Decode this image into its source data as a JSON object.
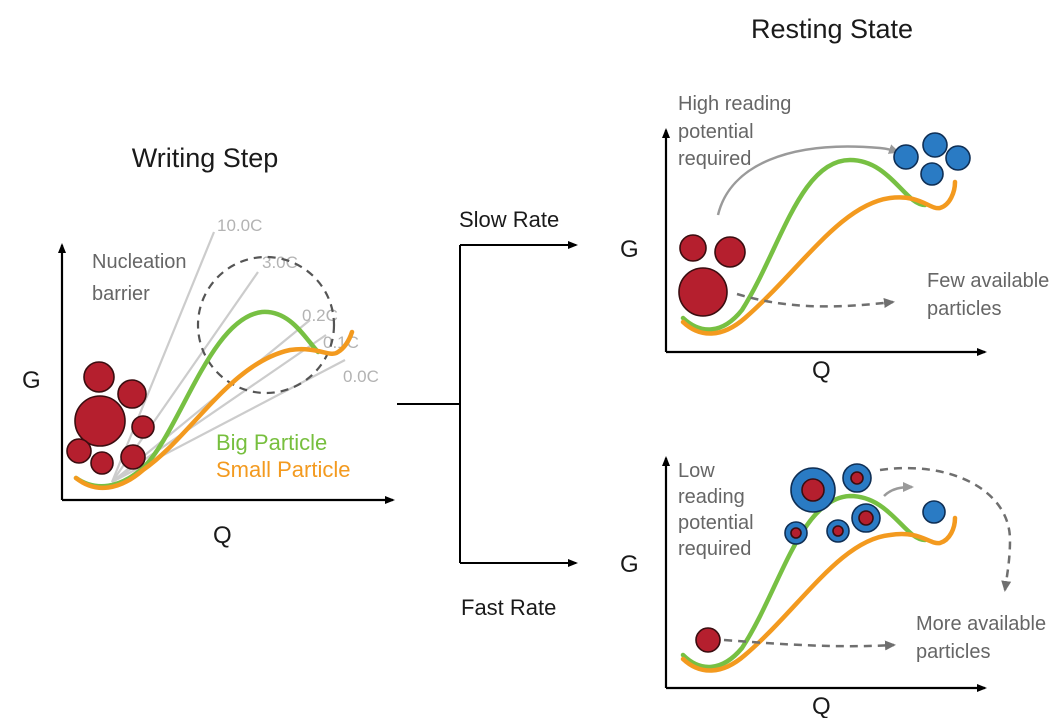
{
  "writing_step": {
    "title": "Writing Step",
    "y_axis_label": "G",
    "x_axis_label": "Q",
    "annotation": "Nucleation barrier",
    "annotation_lines": [
      "Nucleation",
      "barrier"
    ],
    "rate_labels": [
      "10.0C",
      "3.0C",
      "0.2C",
      "0.1C",
      "0.0C"
    ],
    "legend": {
      "big_particle": "Big Particle",
      "small_particle": "Small Particle"
    }
  },
  "branches": {
    "slow_rate": "Slow Rate",
    "fast_rate": "Fast Rate"
  },
  "resting_state": {
    "title": "Resting State",
    "top_panel": {
      "y_axis_label": "G",
      "x_axis_label": "Q",
      "reading_note": "High reading potential required",
      "reading_note_lines": [
        "High reading",
        "potential",
        "required"
      ],
      "availability_note": "Few available particles",
      "availability_note_lines": [
        "Few available",
        "particles"
      ]
    },
    "bottom_panel": {
      "y_axis_label": "G",
      "x_axis_label": "Q",
      "reading_note": "Low reading potential required",
      "reading_note_lines": [
        "Low",
        "reading",
        "potential",
        "required"
      ],
      "availability_note": "More available particles",
      "availability_note_lines": [
        "More available",
        "particles"
      ]
    }
  },
  "colors": {
    "big_particle_curve": "#77c043",
    "small_particle_curve": "#f39a1f",
    "lithiated_particle": "#b51f2e",
    "delithiated_particle": "#2a7bc4",
    "rate_lines": "#cccccc"
  }
}
